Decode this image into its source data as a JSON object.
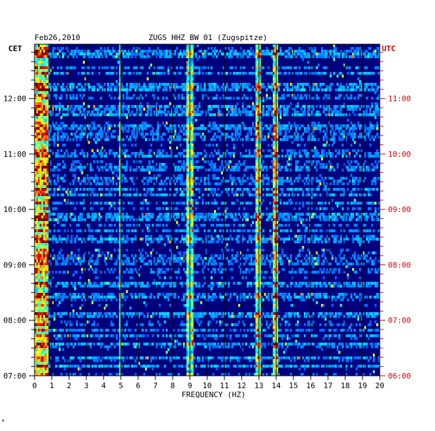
{
  "header": {
    "date": "Feb26,2010",
    "station": "ZUGS HHZ BW 01 (Zugspitze)",
    "left_axis_label": "CET",
    "right_axis_label": "UTC"
  },
  "colors": {
    "background": "#00007f",
    "grid": "#000000",
    "utc_text": "#cc0000"
  },
  "chart_data": {
    "type": "heatmap",
    "title": "ZUGS HHZ BW 01 (Zugspitze)",
    "date": "Feb26,2010",
    "xlabel": "FREQUENCY (HZ)",
    "xlim": [
      0,
      20
    ],
    "x_ticks": [
      "0",
      "1",
      "2",
      "3",
      "4",
      "5",
      "6",
      "7",
      "8",
      "9",
      "10",
      "11",
      "12",
      "13",
      "14",
      "15",
      "16",
      "17",
      "18",
      "19",
      "20"
    ],
    "cet_ticks": [
      "07:00",
      "08:00",
      "09:00",
      "10:00",
      "11:00",
      "12:00"
    ],
    "utc_ticks": [
      "06:00",
      "07:00",
      "08:00",
      "09:00",
      "10:00",
      "11:00"
    ],
    "time_range_cet_hours": [
      7.0,
      12.98
    ],
    "colormap": "jet",
    "features": [
      {
        "f_min": 0.0,
        "f_max": 0.8,
        "intensity": 0.7
      },
      {
        "f_min": 12.8,
        "f_max": 13.1,
        "intensity": 0.5
      },
      {
        "f_min": 13.8,
        "f_max": 14.1,
        "intensity": 0.6
      },
      {
        "f_min": 8.8,
        "f_max": 9.2,
        "intensity": 0.4
      },
      {
        "f_min": 4.9,
        "f_max": 5.0,
        "intensity": 0.35
      }
    ]
  },
  "footer": {
    "mark": "*"
  }
}
